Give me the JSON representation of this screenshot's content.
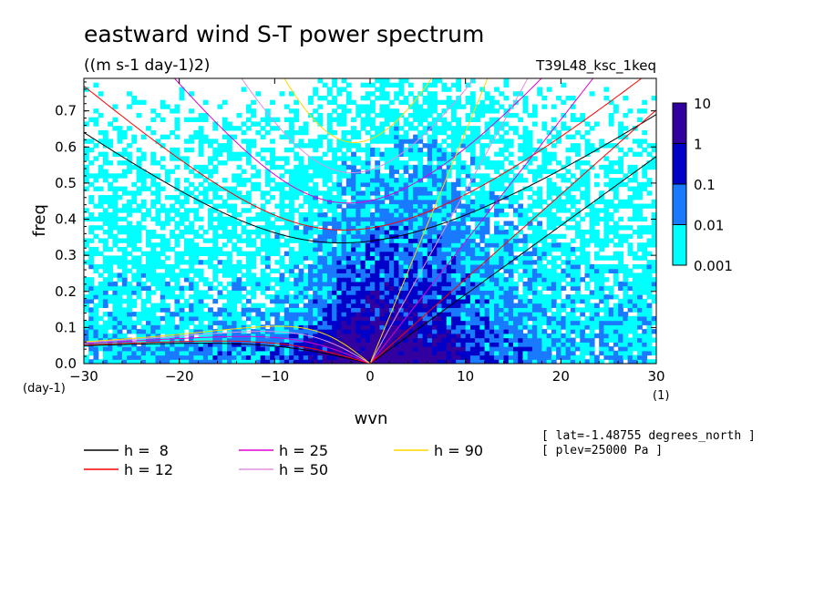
{
  "chart_data": {
    "type": "heatmap",
    "title": "eastward wind S-T power spectrum",
    "units": "((m s-1 day-1)2)",
    "run_label": "T39L48_ksc_1keq",
    "xlabel": "wvn",
    "ylabel": "freq",
    "x_unit": "(1)",
    "y_unit": "(day-1)",
    "xlim": [
      -30,
      30
    ],
    "ylim": [
      0,
      0.79
    ],
    "x_ticks": [
      "−30",
      "−20",
      "−10",
      "0",
      "10",
      "20",
      "30"
    ],
    "x_tick_values": [
      -30,
      -20,
      -10,
      0,
      10,
      20,
      30
    ],
    "y_ticks": [
      "0.0",
      "0.1",
      "0.2",
      "0.3",
      "0.4",
      "0.5",
      "0.6",
      "0.7"
    ],
    "y_tick_values": [
      0,
      0.1,
      0.2,
      0.3,
      0.4,
      0.5,
      0.6,
      0.7
    ],
    "colorbar": {
      "labels": [
        "10",
        "1",
        "0.1",
        "0.01",
        "0.001"
      ],
      "levels": [
        0.001,
        0.01,
        0.1,
        1,
        10
      ],
      "colors": [
        "#00ffff",
        "#1a7aff",
        "#0000c8",
        "#3300a0"
      ]
    },
    "dispersion_curves": [
      {
        "label": "h =  8",
        "h": 8,
        "color": "#000000"
      },
      {
        "label": "h = 12",
        "h": 12,
        "color": "#ff0000"
      },
      {
        "label": "h = 25",
        "h": 25,
        "color": "#e000d0"
      },
      {
        "label": "h = 50",
        "h": 50,
        "color": "#e090e0"
      },
      {
        "label": "h = 90",
        "h": 90,
        "color": "#ffd700"
      }
    ],
    "annotations": [
      "[ lat=-1.48755 degrees_north ]",
      "[ plev=25000 Pa ]"
    ]
  }
}
